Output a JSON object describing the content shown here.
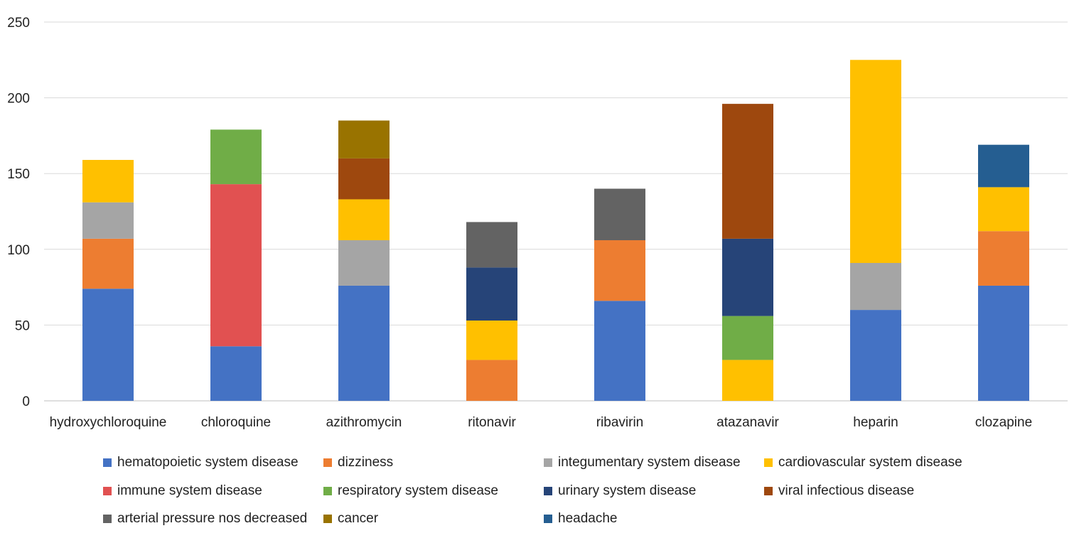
{
  "chart_data": {
    "type": "bar",
    "stacked": true,
    "title": "",
    "xlabel": "",
    "ylabel": "",
    "ylim": [
      0,
      250
    ],
    "yticks": [
      0,
      50,
      100,
      150,
      200,
      250
    ],
    "grid": true,
    "legend_position": "bottom",
    "categories": [
      "hydroxychloroquine",
      "chloroquine",
      "azithromycin",
      "ritonavir",
      "ribavirin",
      "atazanavir",
      "heparin",
      "clozapine"
    ],
    "series": [
      {
        "name": "hematopoietic system disease",
        "color": "#4472C4",
        "values": [
          74,
          36,
          76,
          0,
          66,
          0,
          60,
          76
        ]
      },
      {
        "name": "dizziness",
        "color": "#ED7D31",
        "values": [
          33,
          0,
          0,
          27,
          40,
          0,
          0,
          36
        ]
      },
      {
        "name": "integumentary system disease",
        "color": "#A5A5A5",
        "values": [
          24,
          0,
          30,
          0,
          0,
          0,
          31,
          0
        ]
      },
      {
        "name": "cardiovascular system disease",
        "color": "#FFC000",
        "values": [
          28,
          0,
          27,
          26,
          0,
          27,
          134,
          29
        ]
      },
      {
        "name": "immune system disease",
        "color": "#E15151",
        "values": [
          0,
          107,
          0,
          0,
          0,
          0,
          0,
          0
        ]
      },
      {
        "name": "respiratory system disease",
        "color": "#70AD47",
        "values": [
          0,
          36,
          0,
          0,
          0,
          29,
          0,
          0
        ]
      },
      {
        "name": "urinary system disease",
        "color": "#264478",
        "values": [
          0,
          0,
          0,
          35,
          0,
          51,
          0,
          0
        ]
      },
      {
        "name": "viral infectious disease",
        "color": "#9E480E",
        "values": [
          0,
          0,
          27,
          0,
          0,
          89,
          0,
          0
        ]
      },
      {
        "name": "arterial pressure nos decreased",
        "color": "#636363",
        "values": [
          0,
          0,
          0,
          30,
          34,
          0,
          0,
          0
        ]
      },
      {
        "name": "cancer",
        "color": "#997300",
        "values": [
          0,
          0,
          25,
          0,
          0,
          0,
          0,
          0
        ]
      },
      {
        "name": "headache",
        "color": "#255E91",
        "values": [
          0,
          0,
          0,
          0,
          0,
          0,
          0,
          28
        ]
      }
    ]
  }
}
